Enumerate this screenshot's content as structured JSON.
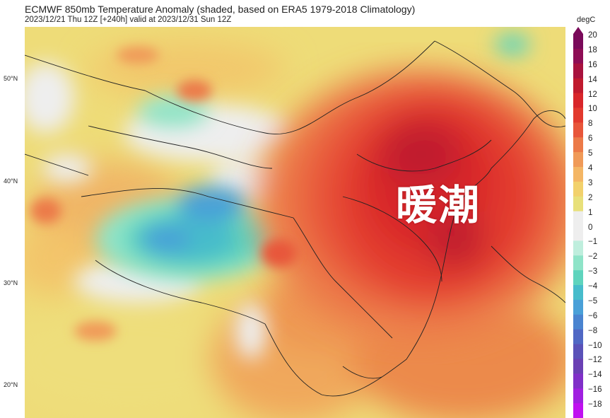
{
  "header": {
    "title": "ECMWF 850mb Temperature Anomaly (shaded, based on ERA5 1979-2018 Climatology)",
    "subtitle": "2023/12/21 Thu 12Z [+240h] valid at 2023/12/31 Sun 12Z"
  },
  "map": {
    "overlay_text": "暖潮",
    "lat_labels": [
      "50°N",
      "40°N",
      "30°N",
      "20°N"
    ]
  },
  "colorbar": {
    "unit": "degC",
    "levels": [
      "20",
      "18",
      "16",
      "14",
      "12",
      "10",
      "8",
      "6",
      "5",
      "4",
      "3",
      "2",
      "1",
      "0",
      "−1",
      "−2",
      "−3",
      "−4",
      "−5",
      "−6",
      "−8",
      "−10",
      "−12",
      "−14",
      "−16",
      "−18"
    ],
    "colors": [
      "#7a0a5a",
      "#8e0d55",
      "#a8123e",
      "#c01a2e",
      "#d8262a",
      "#e23a2e",
      "#e8563a",
      "#ec7a48",
      "#f09a58",
      "#f4b665",
      "#f2d16c",
      "#e8e07a",
      "#eeeeee",
      "#eeeeee",
      "#bfeedd",
      "#8fe4c8",
      "#5fd4bd",
      "#47bccb",
      "#4aa0d8",
      "#4a84d0",
      "#5068c4",
      "#5a52b8",
      "#6a40b4",
      "#8030c8",
      "#a020e0",
      "#c010f0"
    ]
  }
}
